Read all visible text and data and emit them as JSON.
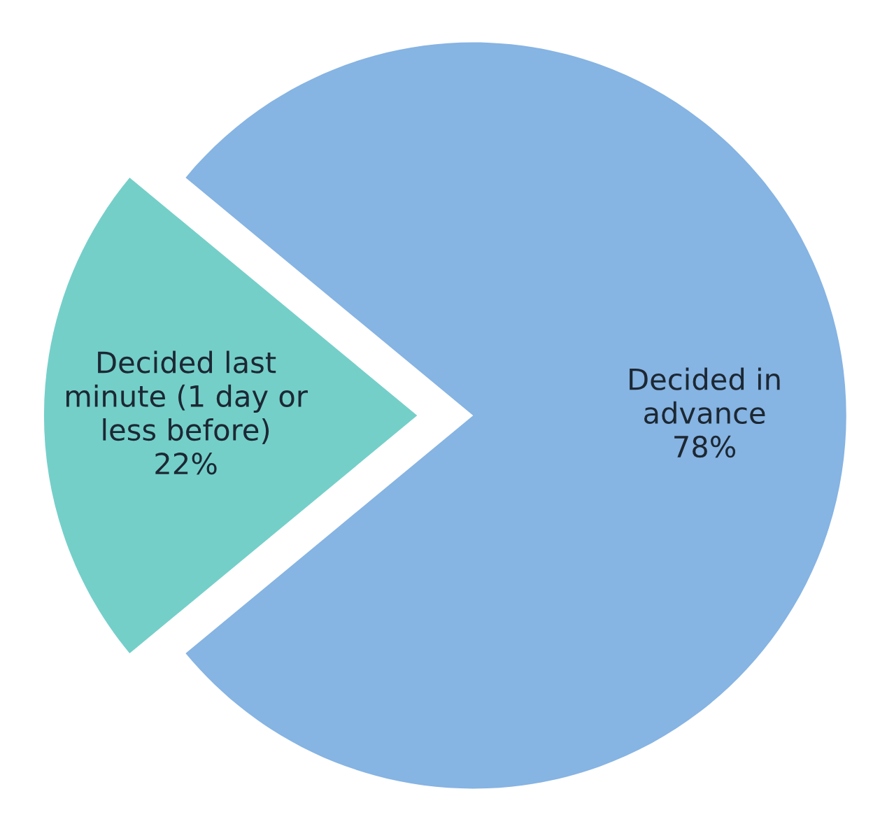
{
  "chart_data": {
    "type": "pie",
    "categories": [
      "Decided last\nminute (1 day or\nless before)",
      "Decided in\nadvance"
    ],
    "values": [
      22,
      78
    ],
    "colors": [
      "#74cfc9",
      "#86b4e3"
    ],
    "value_labels": [
      "22%",
      "78%"
    ]
  }
}
